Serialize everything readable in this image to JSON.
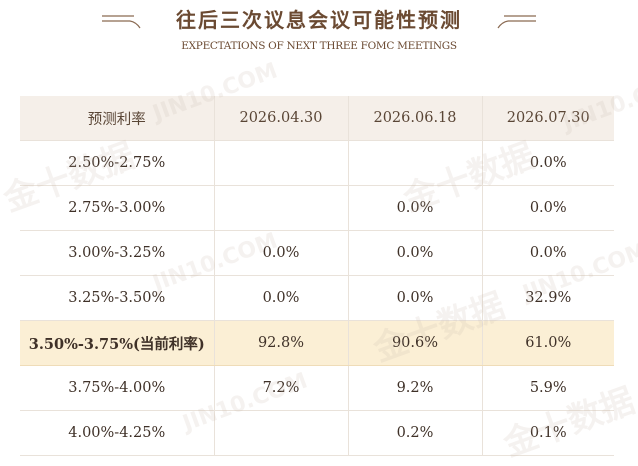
{
  "header": {
    "title": "往后三次议息会议可能性预测",
    "subtitle": "EXPECTATIONS OF NEXT THREE FOMC MEETINGS"
  },
  "table": {
    "columns": [
      "预测利率",
      "2026.04.30",
      "2026.06.18",
      "2026.07.30"
    ],
    "rows": [
      {
        "range": "2.50%-2.75%",
        "values": [
          "",
          "",
          "0.0%"
        ]
      },
      {
        "range": "2.75%-3.00%",
        "values": [
          "",
          "0.0%",
          "0.0%"
        ]
      },
      {
        "range": "3.00%-3.25%",
        "values": [
          "0.0%",
          "0.0%",
          "0.0%"
        ]
      },
      {
        "range": "3.25%-3.50%",
        "values": [
          "0.0%",
          "0.0%",
          "32.9%"
        ]
      },
      {
        "range": "3.50%-3.75%(当前利率)",
        "values": [
          "92.8%",
          "90.6%",
          "61.0%"
        ]
      },
      {
        "range": "3.75%-4.00%",
        "values": [
          "7.2%",
          "9.2%",
          "5.9%"
        ]
      },
      {
        "range": "4.00%-4.25%",
        "values": [
          "",
          "0.2%",
          "0.1%"
        ]
      }
    ]
  },
  "colors": {
    "header_bg": "#f5efe9",
    "highlight_bg": "#fbefd5",
    "title_color": "#6b4a32"
  }
}
